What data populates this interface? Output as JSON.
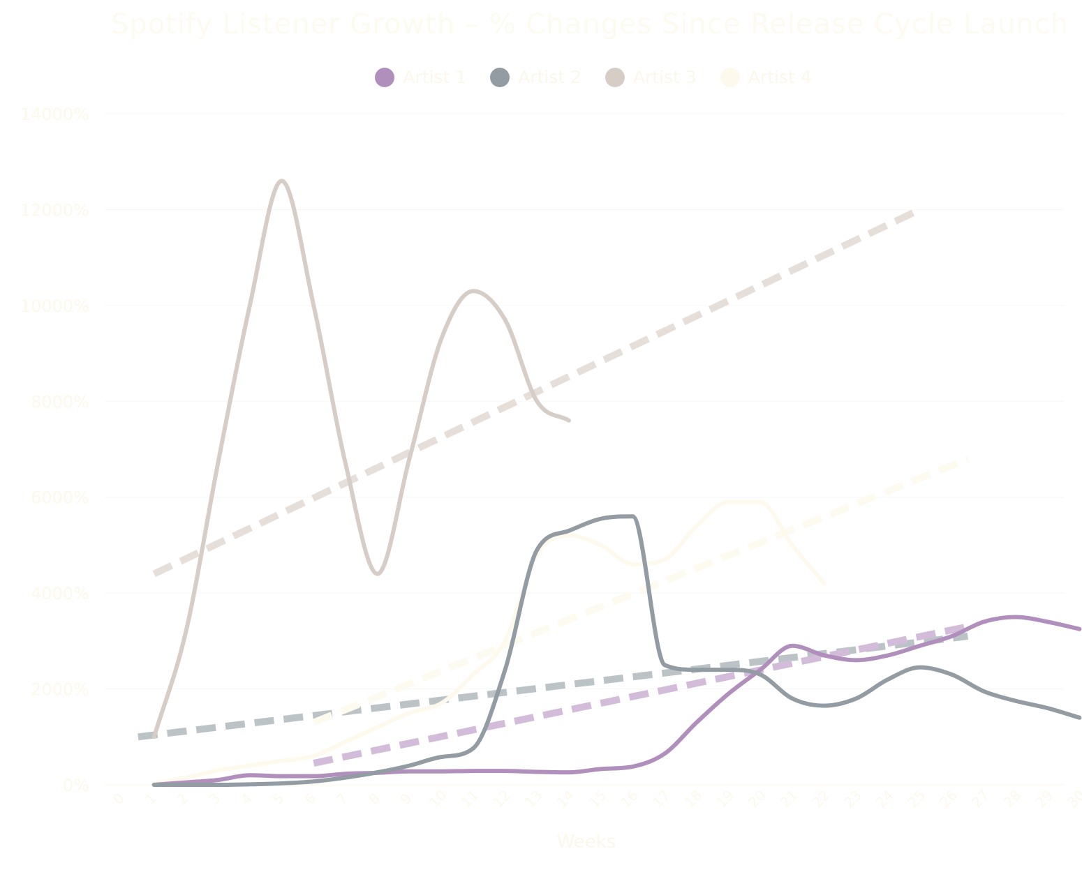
{
  "chart_data": {
    "type": "line",
    "title": "Spotify Listener Growth – % Changes Since Release Cycle Launch",
    "xlabel": "Weeks",
    "ylabel": "",
    "ylim": [
      0,
      14000
    ],
    "y_ticks": [
      0,
      2000,
      4000,
      6000,
      8000,
      10000,
      12000,
      14000
    ],
    "y_tick_labels": [
      "0%",
      "2000%",
      "4000%",
      "6000%",
      "8000%",
      "10000%",
      "12000%",
      "14000%"
    ],
    "x_ticks": [
      "0",
      "1",
      "2",
      "3",
      "4",
      "5",
      "6",
      "7",
      "8",
      "9",
      "10",
      "11",
      "12",
      "13",
      "14",
      "15",
      "16",
      "17",
      "18",
      "19",
      "20",
      "21",
      "22",
      "23",
      "24",
      "25",
      "26",
      "27",
      "28",
      "29",
      "30"
    ],
    "grid": true,
    "legend_position": "top-center",
    "series": [
      {
        "name": "Artist 1",
        "color": "#b08fbd",
        "trend_color": "#d2bcd9",
        "x": [
          1,
          2,
          3,
          4,
          5,
          6,
          7,
          8,
          9,
          10,
          11,
          12,
          13,
          14,
          15,
          16,
          17,
          18,
          19,
          20,
          21,
          22,
          23,
          24,
          25,
          26,
          27,
          28,
          29,
          30
        ],
        "values": [
          0,
          50,
          100,
          200,
          180,
          180,
          230,
          250,
          280,
          280,
          290,
          290,
          270,
          260,
          330,
          380,
          650,
          1300,
          1900,
          2400,
          2900,
          2700,
          2600,
          2700,
          2900,
          3100,
          3400,
          3500,
          3400,
          3250
        ]
      },
      {
        "name": "Artist 2",
        "color": "#939ca3",
        "trend_color": "#bcc3c6",
        "x": [
          1,
          2,
          3,
          4,
          5,
          6,
          7,
          8,
          9,
          10,
          11,
          12,
          13,
          14,
          15,
          16,
          17,
          18,
          19,
          20,
          21,
          22,
          23,
          24,
          25,
          26,
          27,
          28,
          29,
          30
        ],
        "values": [
          0,
          0,
          0,
          10,
          30,
          70,
          150,
          260,
          400,
          580,
          760,
          2400,
          4900,
          5300,
          5550,
          5600,
          2500,
          2400,
          2400,
          2300,
          1800,
          1650,
          1800,
          2200,
          2450,
          2300,
          1950,
          1750,
          1600,
          1400
        ]
      },
      {
        "name": "Artist 3",
        "color": "#d6cdc6",
        "trend_color": "#e5ded9",
        "x": [
          1,
          2,
          3,
          4,
          5,
          6,
          7,
          8,
          9,
          10,
          11,
          12,
          13,
          14
        ],
        "values": [
          1000,
          3200,
          6700,
          10000,
          12600,
          10000,
          6700,
          4400,
          6800,
          9300,
          10300,
          9700,
          8000,
          7600
        ]
      },
      {
        "name": "Artist 4",
        "color": "#fdf9ec",
        "trend_color": "#fdfaf0",
        "x": [
          1,
          2,
          3,
          4,
          5,
          6,
          7,
          8,
          9,
          10,
          11,
          12,
          13,
          14,
          15,
          16,
          17,
          18,
          19,
          20,
          21,
          22
        ],
        "values": [
          30,
          150,
          300,
          400,
          500,
          600,
          900,
          1200,
          1500,
          1700,
          2300,
          3000,
          4800,
          5200,
          5000,
          4600,
          4700,
          5400,
          5900,
          5900,
          5000,
          4200
        ]
      }
    ],
    "trendlines": [
      {
        "series": "Artist 3",
        "x": [
          1,
          25
        ],
        "values": [
          4400,
          12000
        ]
      },
      {
        "series": "Artist 2",
        "x": [
          0.5,
          26.5
        ],
        "values": [
          1000,
          3100
        ]
      },
      {
        "series": "Artist 1",
        "x": [
          6,
          26.5
        ],
        "values": [
          450,
          3300
        ]
      },
      {
        "series": "Artist 4",
        "x": [
          6,
          26.5
        ],
        "values": [
          1300,
          6800
        ]
      }
    ]
  }
}
